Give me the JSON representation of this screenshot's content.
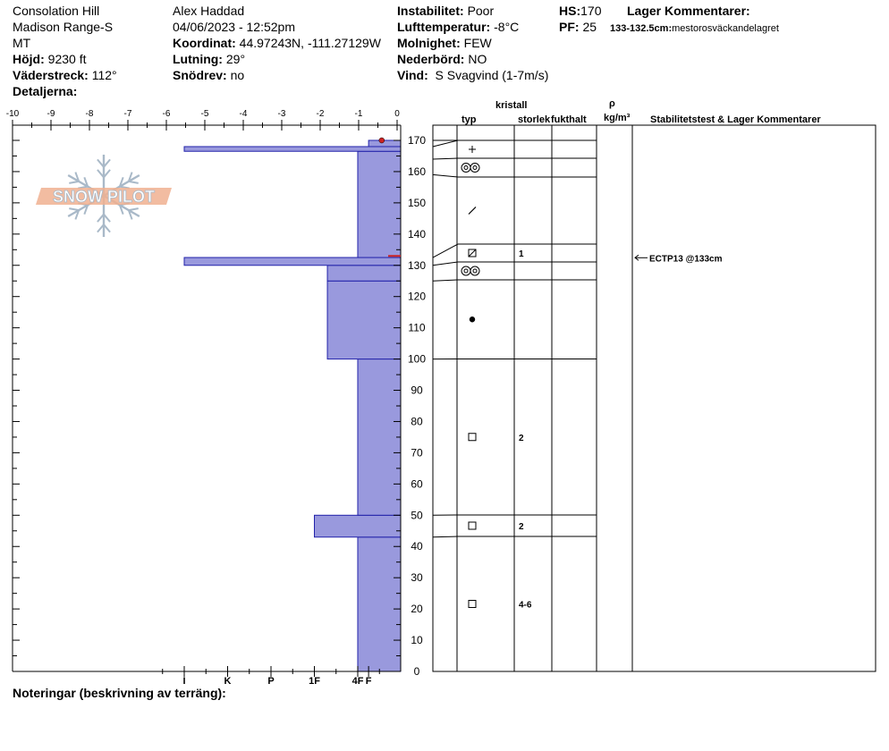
{
  "header": {
    "location": "Consolation Hill",
    "range": "Madison Range-S",
    "state": "MT",
    "elevation_label": "Höjd:",
    "elevation_value": "9230 ft",
    "aspect_label": "Väderstreck:",
    "aspect_value": "112°",
    "details_label": "Detaljerna:",
    "observer": "Alex Haddad",
    "datetime": "04/06/2023 - 12:52pm",
    "coord_label": "Koordinat:",
    "coord_value": "44.97243N, -111.27129W",
    "slope_label": "Lutning:",
    "slope_value": "29°",
    "wind_loading_label": "Snödrev:",
    "wind_loading_value": "no",
    "instability_label": "Instabilitet:",
    "instability_value": "Poor",
    "air_temp_label": "Lufttemperatur:",
    "air_temp_value": "-8°C",
    "sky_label": "Molnighet:",
    "sky_value": "FEW",
    "precip_label": "Nederbörd:",
    "precip_value": "NO",
    "wind_label": "Vind:",
    "wind_value": "S Svagvind (1-7m/s)",
    "hs_label": "HS:",
    "hs_value": "170",
    "pf_label": "PF:",
    "pf_value": "25",
    "layer_comments_label": "Lager Kommentarer:",
    "layer_comment_range": "133-132.5cm:",
    "layer_comment_text": "mestorosväckandelagret"
  },
  "logo_text": "SNOW PILOT",
  "notes_label": "Noteringar (beskrivning av terräng):",
  "column_headers": {
    "crystal": "kristall",
    "type": "typ",
    "size": "storlek",
    "moisture": "fukthalt",
    "rho": "ρ",
    "density_unit": "kg/m³",
    "stability": "Stabilitetstest & Lager Kommentarer"
  },
  "chart_data": {
    "type": "snow-profile",
    "temperature_axis": {
      "ticks": [
        -10,
        -9,
        -8,
        -7,
        -6,
        -5,
        -4,
        -3,
        -2,
        -1,
        0
      ],
      "tick_labels": [
        "-10",
        "-9",
        "-8",
        "-7",
        "-6",
        "-5",
        "-4",
        "-3",
        "-2",
        "-1",
        "0"
      ],
      "range": [
        -10,
        0
      ]
    },
    "height_axis": {
      "ticks": [
        0,
        10,
        20,
        30,
        40,
        50,
        60,
        70,
        80,
        90,
        100,
        110,
        120,
        130,
        140,
        150,
        160,
        170
      ],
      "range": [
        0,
        175
      ]
    },
    "hardness_axis": {
      "labels": [
        "I",
        "K",
        "P",
        "1F",
        "4F",
        "F"
      ],
      "values": [
        4,
        3,
        2,
        1,
        0,
        -0.25
      ]
    },
    "hardness_layers": [
      {
        "bottom": 0,
        "top": 43,
        "hardness": 0
      },
      {
        "bottom": 43,
        "top": 50,
        "hardness": 1
      },
      {
        "bottom": 50,
        "top": 100,
        "hardness": 0
      },
      {
        "bottom": 100,
        "top": 125,
        "hardness": 0.7
      },
      {
        "bottom": 125,
        "top": 130,
        "hardness": 0.7
      },
      {
        "bottom": 130,
        "top": 132.5,
        "hardness": 4
      },
      {
        "bottom": 132.5,
        "top": 166.5,
        "hardness": 0
      },
      {
        "bottom": 166.5,
        "top": 168,
        "hardness": 4
      },
      {
        "bottom": 168,
        "top": 170,
        "hardness": -0.25
      }
    ],
    "temperature_points": [
      {
        "height": 170,
        "temp": -0.4
      }
    ],
    "weak_layer_marker": {
      "height": 133
    },
    "strat_layers": [
      {
        "bottom": 0,
        "top": 43,
        "grain": "box",
        "size": "4-6"
      },
      {
        "bottom": 43,
        "top": 50,
        "grain": "box",
        "size": "2"
      },
      {
        "bottom": 50,
        "top": 100,
        "grain": "box",
        "size": "2"
      },
      {
        "bottom": 100,
        "top": 125,
        "grain": "dot",
        "size": ""
      },
      {
        "bottom": 125,
        "top": 130,
        "grain": "rounds",
        "size": ""
      },
      {
        "bottom": 130,
        "top": 132.5,
        "grain": "facet-mix",
        "size": "1"
      },
      {
        "bottom": 132.5,
        "top": 159,
        "grain": "slash",
        "size": ""
      },
      {
        "bottom": 159,
        "top": 164,
        "grain": "rounds",
        "size": ""
      },
      {
        "bottom": 164,
        "top": 168,
        "grain": "plus",
        "size": ""
      },
      {
        "bottom": 168,
        "top": 170,
        "grain": "",
        "size": ""
      }
    ],
    "stability_tests": [
      {
        "height": 133,
        "label": "ECTP13 @133cm"
      }
    ]
  },
  "colors": {
    "hardness_fill": "#9999dd",
    "hardness_stroke": "#2222aa",
    "temp_marker": "#cc2222",
    "logo_orange": "#f0b090",
    "logo_blue": "#a9b9c8"
  }
}
